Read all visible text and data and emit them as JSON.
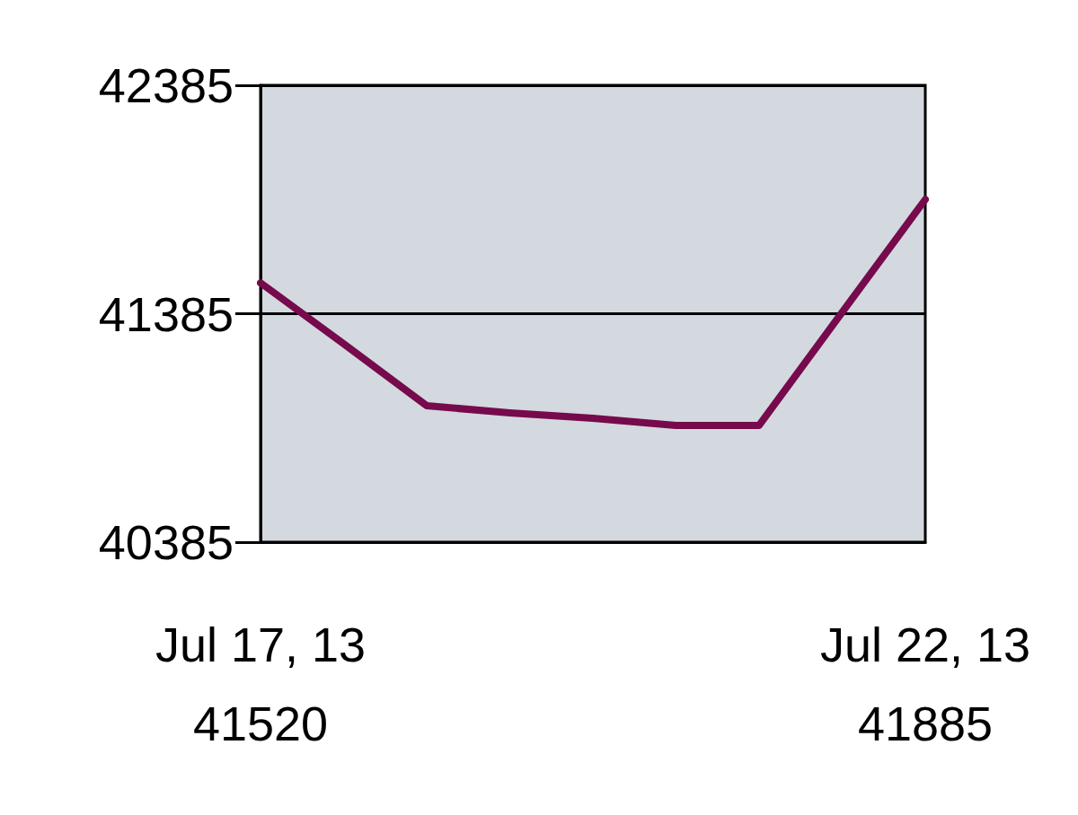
{
  "chart_data": {
    "type": "line",
    "categories": [
      "Jul 17, 13\n41520",
      null,
      null,
      null,
      null,
      null,
      null,
      null,
      "Jul 22, 13\n41885"
    ],
    "series": [
      {
        "color": "#760a4c",
        "values": [
          41520,
          41253,
          40982,
          40951,
          40927,
          40896,
          40896,
          41391,
          41885
        ]
      }
    ],
    "ylim": [
      40385,
      42385
    ],
    "yticks": [
      40385,
      41385,
      42385
    ],
    "grid": "y",
    "marker": "none",
    "line_style": "solid"
  }
}
